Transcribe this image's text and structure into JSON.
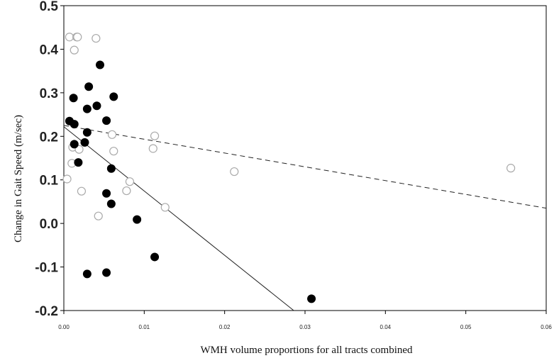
{
  "chart_data": {
    "type": "scatter",
    "title": "",
    "xlabel": "WMH volume proportions for all tracts combined",
    "ylabel": "Change in Gait Speed (m/sec)",
    "xlim": [
      0.0,
      0.06
    ],
    "ylim": [
      -0.2,
      0.5
    ],
    "xticks": [
      "0.00",
      "0.01",
      "0.02",
      "0.03",
      "0.04",
      "0.05",
      "0.06"
    ],
    "yticks": [
      "-0.2",
      "-0.1",
      "0.0",
      "0.1",
      "0.2",
      "0.3",
      "0.4",
      "0.5"
    ],
    "xtick_values": [
      0,
      0.01,
      0.02,
      0.03,
      0.04,
      0.05,
      0.06
    ],
    "ytick_values": [
      -0.2,
      -0.1,
      0.0,
      0.1,
      0.2,
      0.3,
      0.4,
      0.5
    ],
    "grid": false,
    "series": [
      {
        "marker": "filled-circle",
        "color": "#000000",
        "points": [
          [
            0.0007,
            0.235
          ],
          [
            0.0012,
            0.288
          ],
          [
            0.0013,
            0.182
          ],
          [
            0.0013,
            0.228
          ],
          [
            0.0018,
            0.14
          ],
          [
            0.0026,
            0.186
          ],
          [
            0.0029,
            0.263
          ],
          [
            0.0029,
            0.209
          ],
          [
            0.0031,
            0.314
          ],
          [
            0.0041,
            0.27
          ],
          [
            0.0045,
            0.364
          ],
          [
            0.0053,
            0.236
          ],
          [
            0.0053,
            0.069
          ],
          [
            0.0059,
            0.126
          ],
          [
            0.0059,
            0.045
          ],
          [
            0.0062,
            0.291
          ],
          [
            0.0091,
            0.009
          ],
          [
            0.0113,
            -0.077
          ],
          [
            0.0029,
            -0.116
          ],
          [
            0.0053,
            -0.113
          ],
          [
            0.0308,
            -0.173
          ]
        ],
        "fit_line": {
          "style": "solid",
          "x": [
            0.0,
            0.0286
          ],
          "y": [
            0.222,
            -0.2
          ]
        }
      },
      {
        "marker": "open-circle",
        "color": "#aaaaaa",
        "points": [
          [
            0.0004,
            0.102
          ],
          [
            0.0007,
            0.428
          ],
          [
            0.001,
            0.138
          ],
          [
            0.0011,
            0.175
          ],
          [
            0.0013,
            0.398
          ],
          [
            0.0016,
            0.428
          ],
          [
            0.0017,
            0.428
          ],
          [
            0.0019,
            0.17
          ],
          [
            0.0022,
            0.074
          ],
          [
            0.004,
            0.425
          ],
          [
            0.0043,
            0.017
          ],
          [
            0.006,
            0.204
          ],
          [
            0.0062,
            0.166
          ],
          [
            0.0078,
            0.075
          ],
          [
            0.0082,
            0.096
          ],
          [
            0.0111,
            0.172
          ],
          [
            0.0113,
            0.201
          ],
          [
            0.0126,
            0.037
          ],
          [
            0.0212,
            0.119
          ],
          [
            0.0556,
            0.127
          ]
        ],
        "fit_line": {
          "style": "dashed",
          "x": [
            0.0,
            0.06
          ],
          "y": [
            0.225,
            0.035
          ]
        }
      }
    ]
  }
}
